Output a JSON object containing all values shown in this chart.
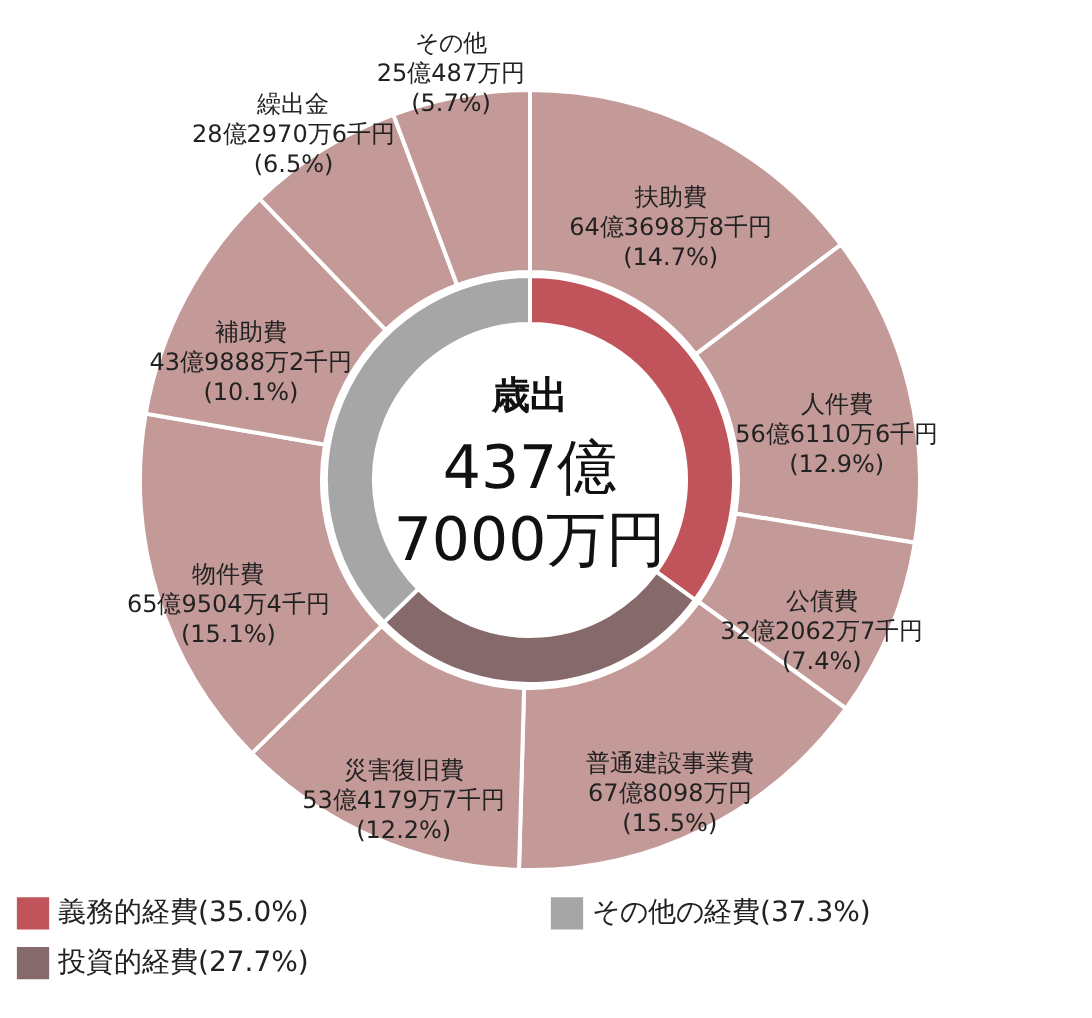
{
  "chart_data": [
    {
      "type": "donut",
      "title": "歳出",
      "annotations": [
        "437億",
        "7000万円"
      ],
      "categories": [
        "扶助費",
        "人件費",
        "公債費",
        "普通建設事業費",
        "災害復旧費",
        "物件費",
        "補助費",
        "繰出金",
        "その他"
      ],
      "values": [
        14.7,
        12.9,
        7.4,
        15.5,
        12.2,
        15.1,
        10.1,
        6.5,
        5.7
      ],
      "colors": [
        "#c49a98",
        "#c49a98",
        "#c49a98",
        "#c49a98",
        "#c49a98",
        "#c49a98",
        "#c49a98",
        "#c49a98",
        "#c49a98"
      ],
      "value_labels": [
        "64億3698万8千円(14.7%)",
        "56億6110万6千円(12.9%)",
        "32億2062万7千円(7.4%)",
        "67億8098万円(15.5%)",
        "53億4179万7千円(12.2%)",
        "65億9504万4千円(15.1%)",
        "43億9888万2千円(10.1%)",
        "28億2970万6千円(6.5%)",
        "25億487万円(5.7%)"
      ]
    },
    {
      "type": "donut",
      "categories": [
        "義務的経費(35.0%)",
        "投資的経費(27.7%)",
        "その他の経費(37.3%)"
      ],
      "values": [
        35.0,
        27.7,
        37.3
      ],
      "colors": [
        "#c0545a",
        "#86696a",
        "#a6a6a6"
      ],
      "legend": "bottom left"
    }
  ]
}
